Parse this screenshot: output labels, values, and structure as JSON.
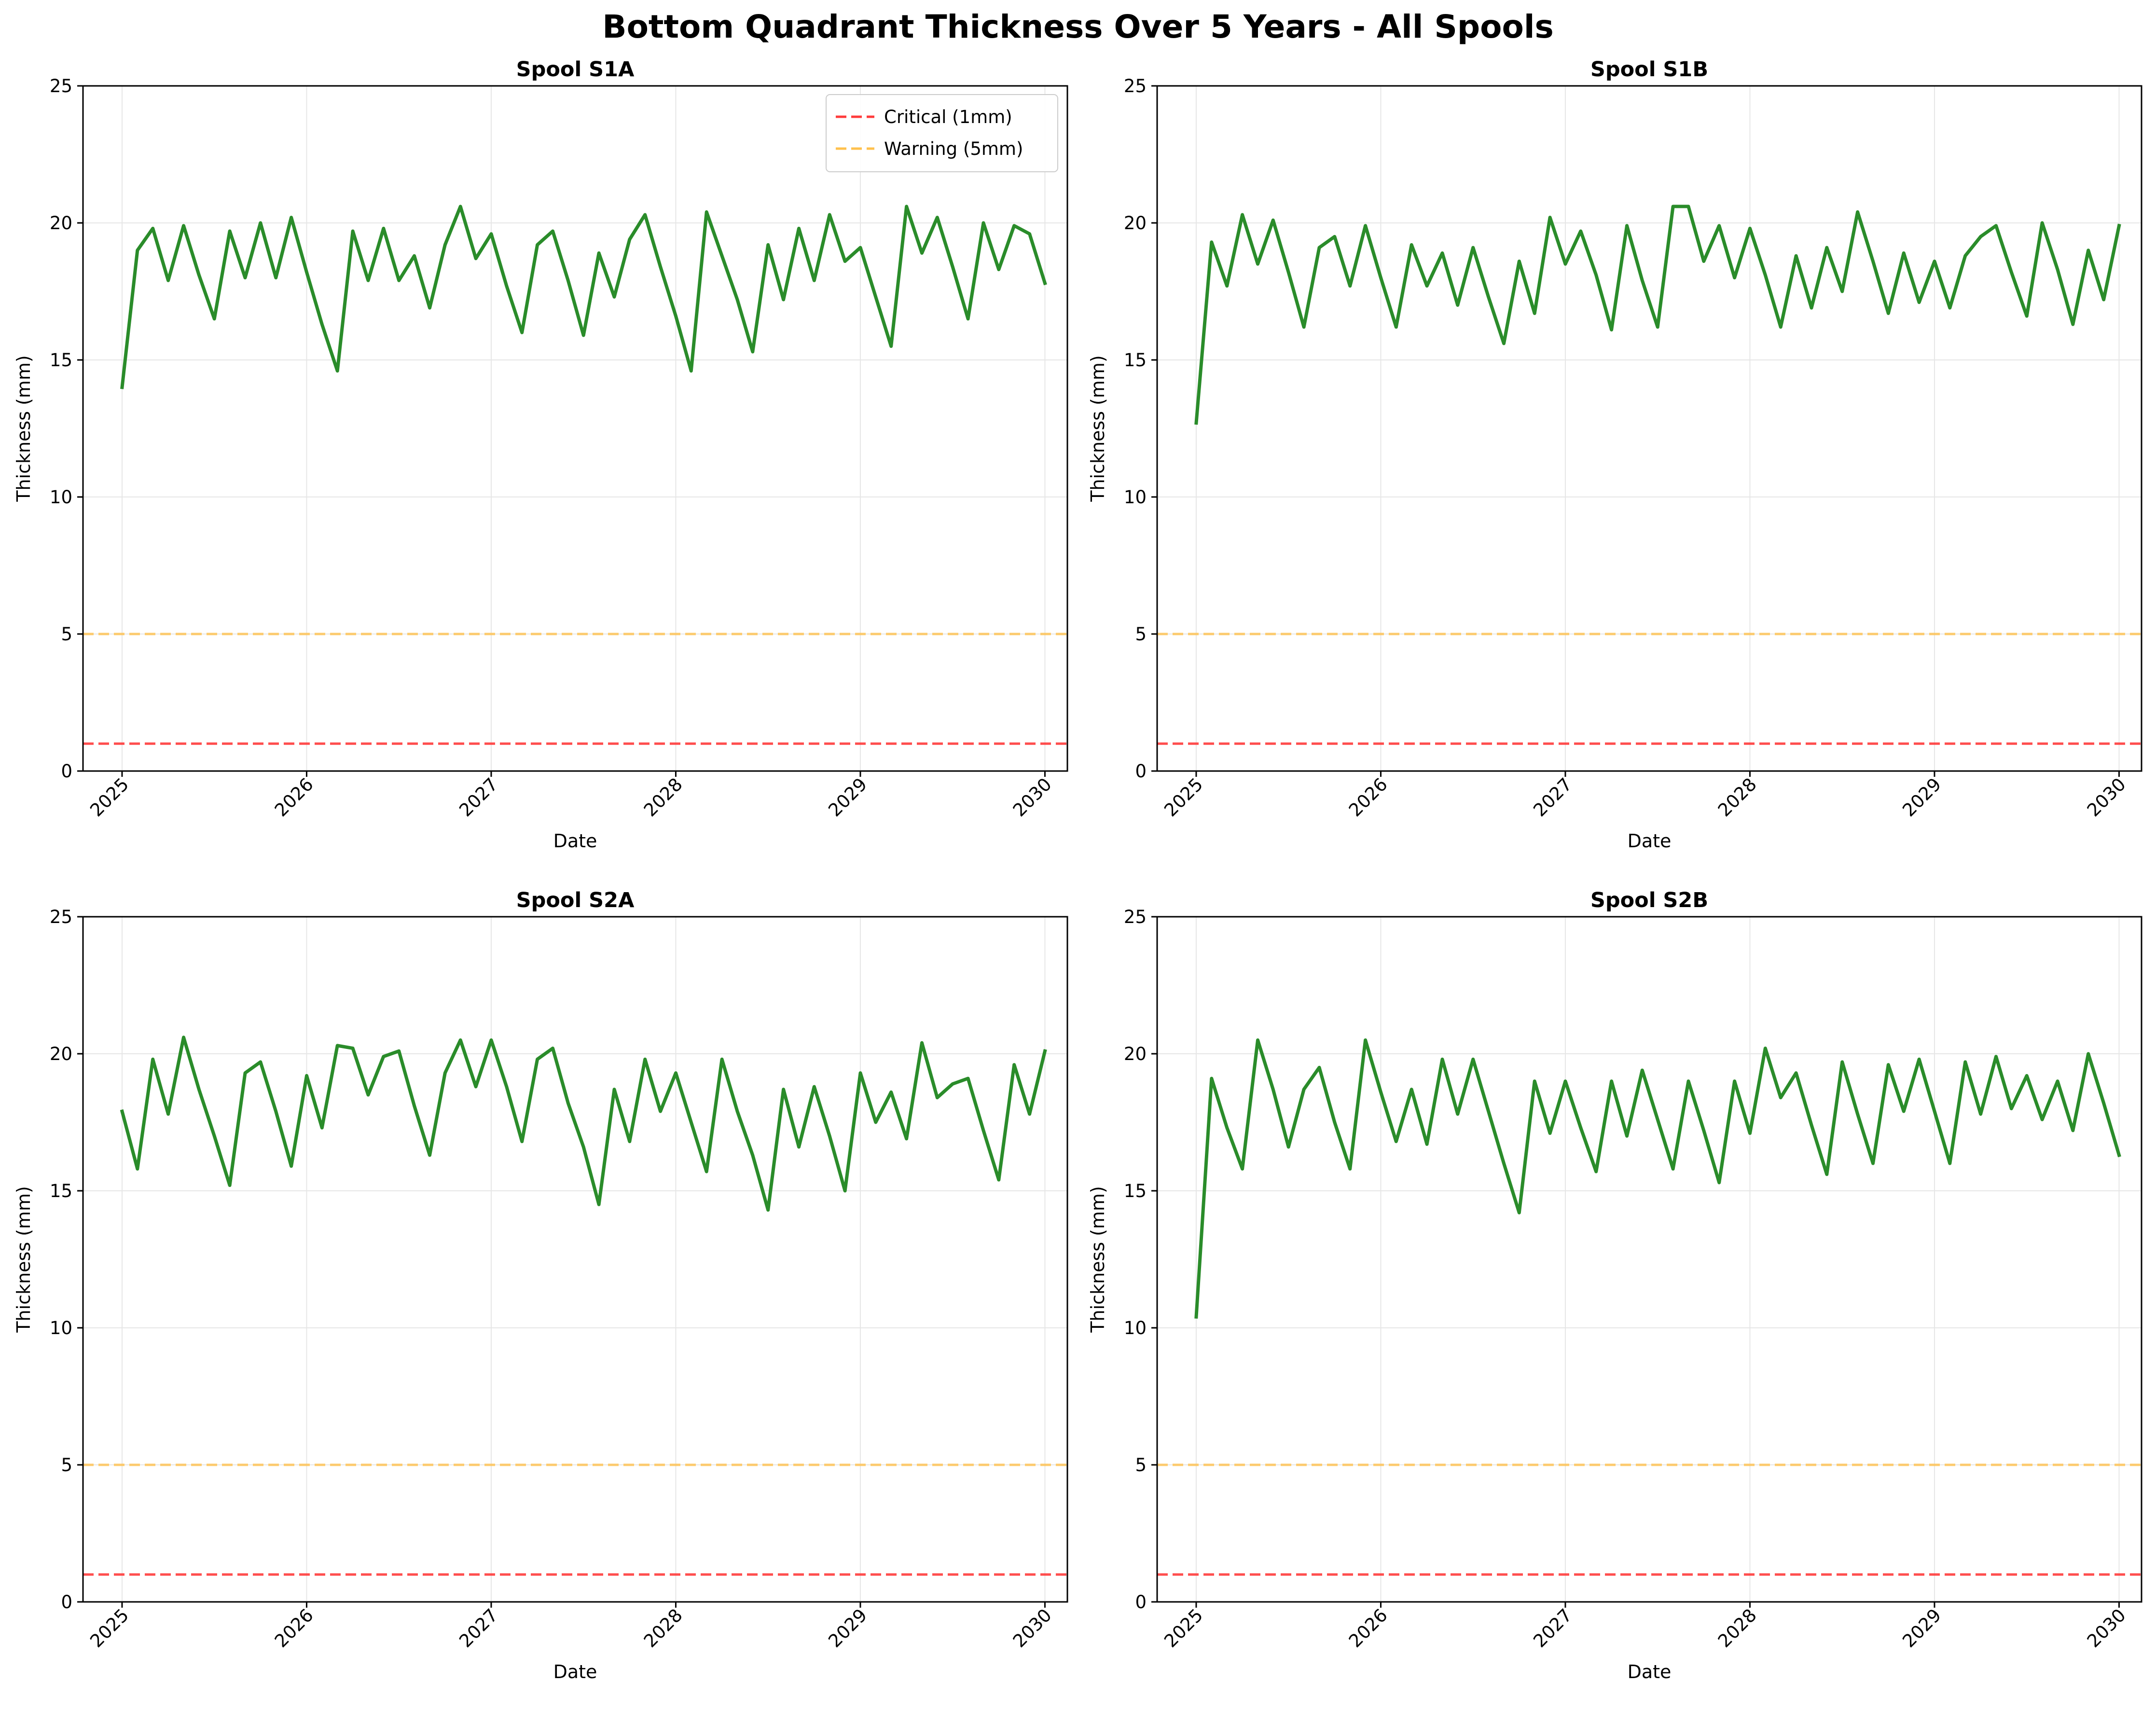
{
  "figure_title": "Bottom Quadrant Thickness Over 5 Years - All Spools",
  "colors": {
    "series": "#2a8c2a",
    "critical": "#ff3b3b",
    "warning": "#ffc14d",
    "grid": "#e6e6e6"
  },
  "chart_data": [
    {
      "type": "line",
      "title": "Spool S1A",
      "xlabel": "Date",
      "ylabel": "Thickness (mm)",
      "xlim": [
        "2024-10-15",
        "2030-02-15"
      ],
      "ylim": [
        0,
        25
      ],
      "xticks": [
        "2025",
        "2026",
        "2027",
        "2028",
        "2029",
        "2030"
      ],
      "yticks": [
        0,
        5,
        10,
        15,
        20,
        25
      ],
      "grid": true,
      "legend": {
        "placement": "top-right",
        "entries": [
          "Critical (1mm)",
          "Warning (5mm)"
        ]
      },
      "reference_lines": [
        {
          "name": "Critical (1mm)",
          "y": 1
        },
        {
          "name": "Warning (5mm)",
          "y": 5
        }
      ],
      "series": [
        {
          "x_start": "2025-01",
          "x_step": "1 month",
          "values": [
            14.0,
            19.0,
            19.8,
            17.9,
            19.9,
            18.1,
            16.5,
            19.7,
            18.0,
            20.0,
            18.0,
            20.2,
            18.2,
            16.3,
            14.6,
            19.7,
            17.9,
            19.8,
            17.9,
            18.8,
            16.9,
            19.2,
            20.6,
            18.7,
            19.6,
            17.7,
            16.0,
            19.2,
            19.7,
            17.9,
            15.9,
            18.9,
            17.3,
            19.4,
            20.3,
            18.4,
            16.6,
            14.6,
            20.4,
            18.8,
            17.2,
            15.3,
            19.2,
            17.2,
            19.8,
            17.9,
            20.3,
            18.6,
            19.1,
            17.3,
            15.5,
            20.6,
            18.9,
            20.2,
            18.4,
            16.5,
            20.0,
            18.3,
            19.9,
            19.6,
            17.8
          ]
        }
      ]
    },
    {
      "type": "line",
      "title": "Spool S1B",
      "xlabel": "Date",
      "ylabel": "Thickness (mm)",
      "xlim": [
        "2024-10-15",
        "2030-02-15"
      ],
      "ylim": [
        0,
        25
      ],
      "xticks": [
        "2025",
        "2026",
        "2027",
        "2028",
        "2029",
        "2030"
      ],
      "yticks": [
        0,
        5,
        10,
        15,
        20,
        25
      ],
      "grid": true,
      "reference_lines": [
        {
          "name": "Critical (1mm)",
          "y": 1
        },
        {
          "name": "Warning (5mm)",
          "y": 5
        }
      ],
      "series": [
        {
          "x_start": "2025-01",
          "x_step": "1 month",
          "values": [
            12.7,
            19.3,
            17.7,
            20.3,
            18.5,
            20.1,
            18.2,
            16.2,
            19.1,
            19.5,
            17.7,
            19.9,
            18.0,
            16.2,
            19.2,
            17.7,
            18.9,
            17.0,
            19.1,
            17.3,
            15.6,
            18.6,
            16.7,
            20.2,
            18.5,
            19.7,
            18.1,
            16.1,
            19.9,
            17.9,
            16.2,
            20.6,
            20.6,
            18.6,
            19.9,
            18.0,
            19.8,
            18.1,
            16.2,
            18.8,
            16.9,
            19.1,
            17.5,
            20.4,
            18.6,
            16.7,
            18.9,
            17.1,
            18.6,
            16.9,
            18.8,
            19.5,
            19.9,
            18.2,
            16.6,
            20.0,
            18.3,
            16.3,
            19.0,
            17.2,
            19.9
          ]
        }
      ]
    },
    {
      "type": "line",
      "title": "Spool S2A",
      "xlabel": "Date",
      "ylabel": "Thickness (mm)",
      "xlim": [
        "2024-10-15",
        "2030-02-15"
      ],
      "ylim": [
        0,
        25
      ],
      "xticks": [
        "2025",
        "2026",
        "2027",
        "2028",
        "2029",
        "2030"
      ],
      "yticks": [
        0,
        5,
        10,
        15,
        20,
        25
      ],
      "grid": true,
      "reference_lines": [
        {
          "name": "Critical (1mm)",
          "y": 1
        },
        {
          "name": "Warning (5mm)",
          "y": 5
        }
      ],
      "series": [
        {
          "x_start": "2025-01",
          "x_step": "1 month",
          "values": [
            17.9,
            15.8,
            19.8,
            17.8,
            20.6,
            18.7,
            17.0,
            15.2,
            19.3,
            19.7,
            17.9,
            15.9,
            19.2,
            17.3,
            20.3,
            20.2,
            18.5,
            19.9,
            20.1,
            18.1,
            16.3,
            19.3,
            20.5,
            18.8,
            20.5,
            18.8,
            16.8,
            19.8,
            20.2,
            18.2,
            16.6,
            14.5,
            18.7,
            16.8,
            19.8,
            17.9,
            19.3,
            17.5,
            15.7,
            19.8,
            17.9,
            16.3,
            14.3,
            18.7,
            16.6,
            18.8,
            17.0,
            15.0,
            19.3,
            17.5,
            18.6,
            16.9,
            20.4,
            18.4,
            18.9,
            19.1,
            17.2,
            15.4,
            19.6,
            17.8,
            20.1
          ]
        }
      ]
    },
    {
      "type": "line",
      "title": "Spool S2B",
      "xlabel": "Date",
      "ylabel": "Thickness (mm)",
      "xlim": [
        "2024-10-15",
        "2030-02-15"
      ],
      "ylim": [
        0,
        25
      ],
      "xticks": [
        "2025",
        "2026",
        "2027",
        "2028",
        "2029",
        "2030"
      ],
      "yticks": [
        0,
        5,
        10,
        15,
        20,
        25
      ],
      "grid": true,
      "reference_lines": [
        {
          "name": "Critical (1mm)",
          "y": 1
        },
        {
          "name": "Warning (5mm)",
          "y": 5
        }
      ],
      "series": [
        {
          "x_start": "2025-01",
          "x_step": "1 month",
          "values": [
            10.4,
            19.1,
            17.3,
            15.8,
            20.5,
            18.7,
            16.6,
            18.7,
            19.5,
            17.5,
            15.8,
            20.5,
            18.6,
            16.8,
            18.7,
            16.7,
            19.8,
            17.8,
            19.8,
            17.9,
            16.0,
            14.2,
            19.0,
            17.1,
            19.0,
            17.3,
            15.7,
            19.0,
            17.0,
            19.4,
            17.6,
            15.8,
            19.0,
            17.2,
            15.3,
            19.0,
            17.1,
            20.2,
            18.4,
            19.3,
            17.4,
            15.6,
            19.7,
            17.8,
            16.0,
            19.6,
            17.9,
            19.8,
            17.9,
            16.0,
            19.7,
            17.8,
            19.9,
            18.0,
            19.2,
            17.6,
            19.0,
            17.2,
            20.0,
            18.2,
            16.3
          ]
        }
      ]
    }
  ]
}
